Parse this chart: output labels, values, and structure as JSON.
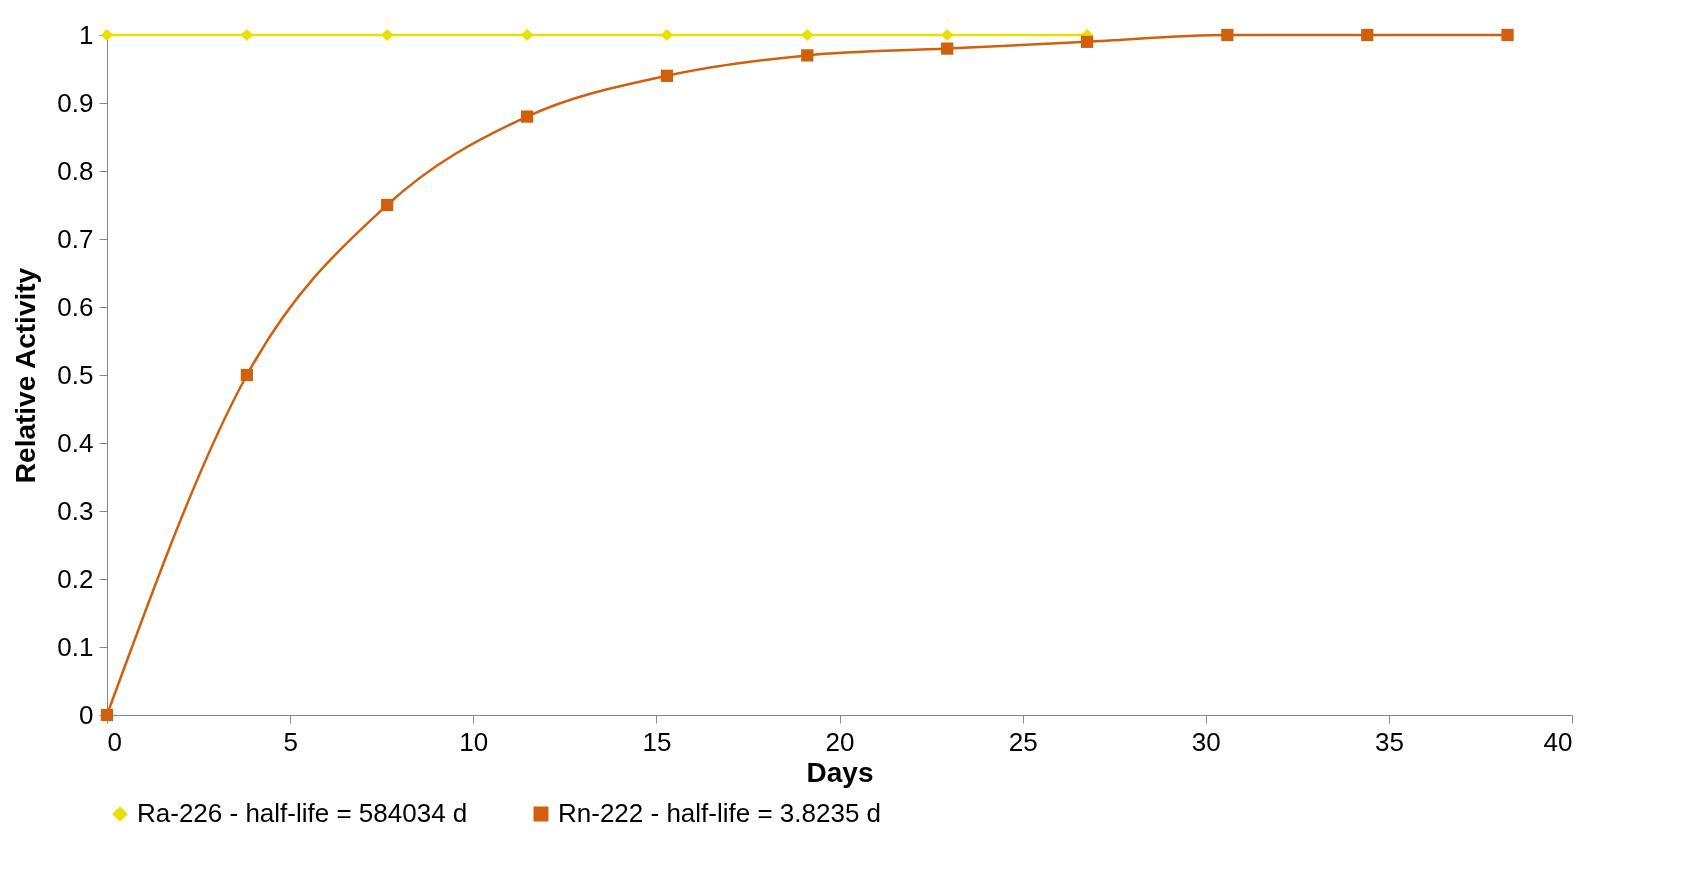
{
  "chart_data": {
    "type": "line",
    "xlabel": "Days",
    "ylabel": "Relative Activity",
    "x": [
      0,
      3.82,
      7.65,
      11.47,
      15.29,
      19.12,
      22.94,
      26.76,
      30.59,
      34.41,
      38.24
    ],
    "series": [
      {
        "name": "Ra-226 - half-life = 584034 d",
        "color": "#e8e000",
        "marker": "diamond",
        "values": [
          1,
          1,
          1,
          1,
          1,
          1,
          1,
          1,
          null,
          null,
          null
        ]
      },
      {
        "name": "Rn-222 - half-life = 3.8235 d",
        "color": "#d0600c",
        "marker": "square",
        "values": [
          0,
          0.5,
          0.75,
          0.88,
          0.94,
          0.97,
          0.98,
          0.99,
          1,
          1,
          1
        ]
      }
    ],
    "xlim": [
      0,
      40
    ],
    "xticks": [
      0,
      5,
      10,
      15,
      20,
      25,
      30,
      35,
      40
    ],
    "ylim": [
      0,
      1
    ],
    "yticks": [
      0,
      0.1,
      0.2,
      0.3,
      0.4,
      0.5,
      0.6,
      0.7,
      0.8,
      0.9,
      1
    ],
    "grid": false,
    "legend": "bottom",
    "line_style": "solid"
  }
}
